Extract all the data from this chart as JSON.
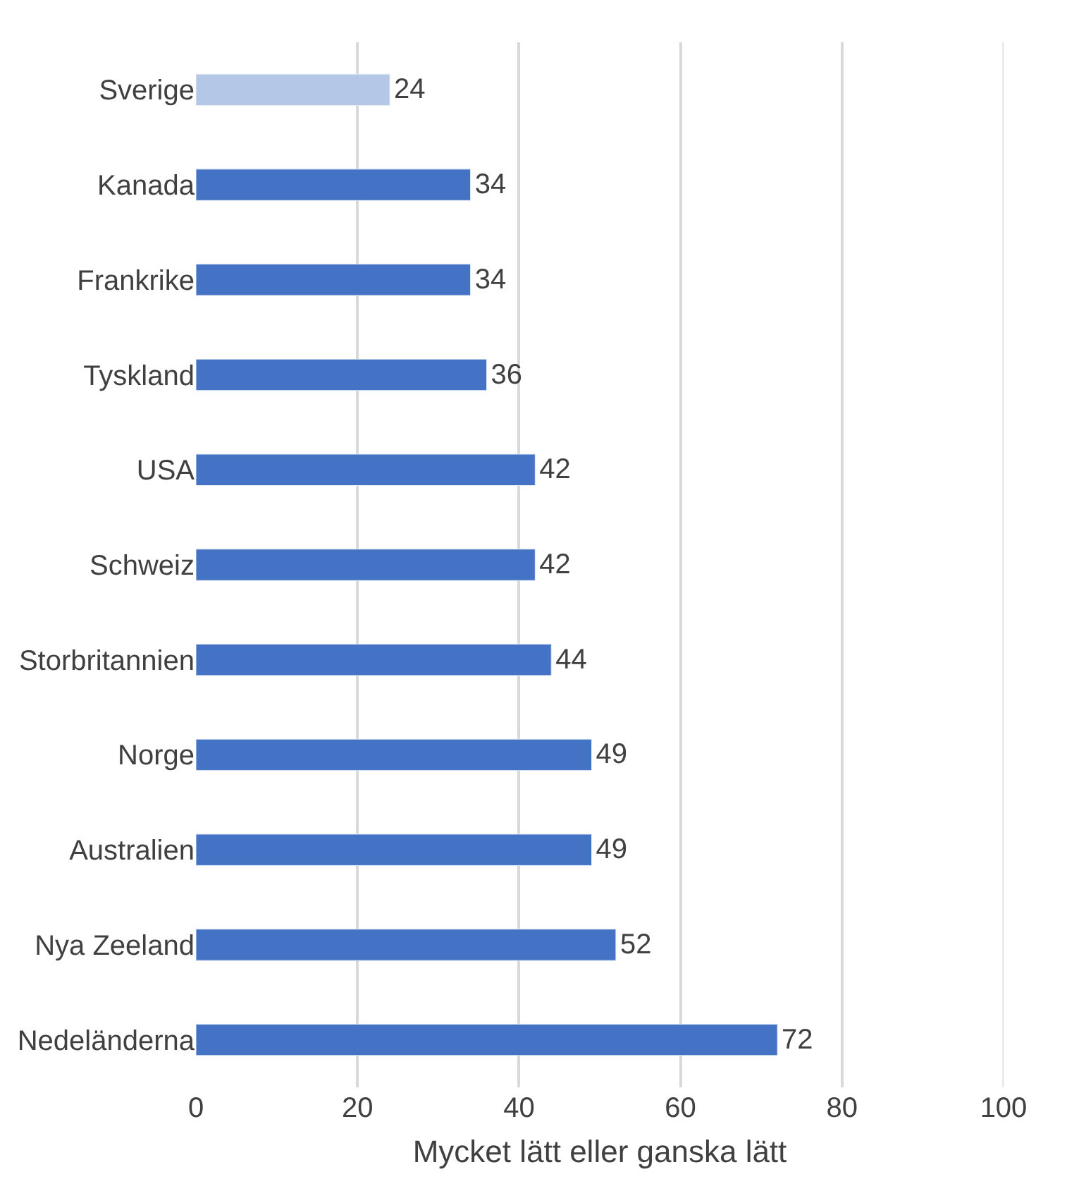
{
  "chart_data": {
    "type": "bar",
    "orientation": "horizontal",
    "categories": [
      "Sverige",
      "Kanada",
      "Frankrike",
      "Tyskland",
      "USA",
      "Schweiz",
      "Storbritannien",
      "Norge",
      "Australien",
      "Nya Zeeland",
      "Nedeländerna"
    ],
    "values": [
      24,
      34,
      34,
      36,
      42,
      42,
      44,
      49,
      49,
      52,
      72
    ],
    "colors": [
      "#b4c7e7",
      "#4472c4",
      "#4472c4",
      "#4472c4",
      "#4472c4",
      "#4472c4",
      "#4472c4",
      "#4472c4",
      "#4472c4",
      "#4472c4",
      "#4472c4"
    ],
    "xlabel": "Mycket lätt eller ganska lätt",
    "xlim": [
      0,
      100
    ],
    "xticks": [
      0,
      20,
      40,
      60,
      80,
      100
    ],
    "grid": "x",
    "data_labels": true
  }
}
